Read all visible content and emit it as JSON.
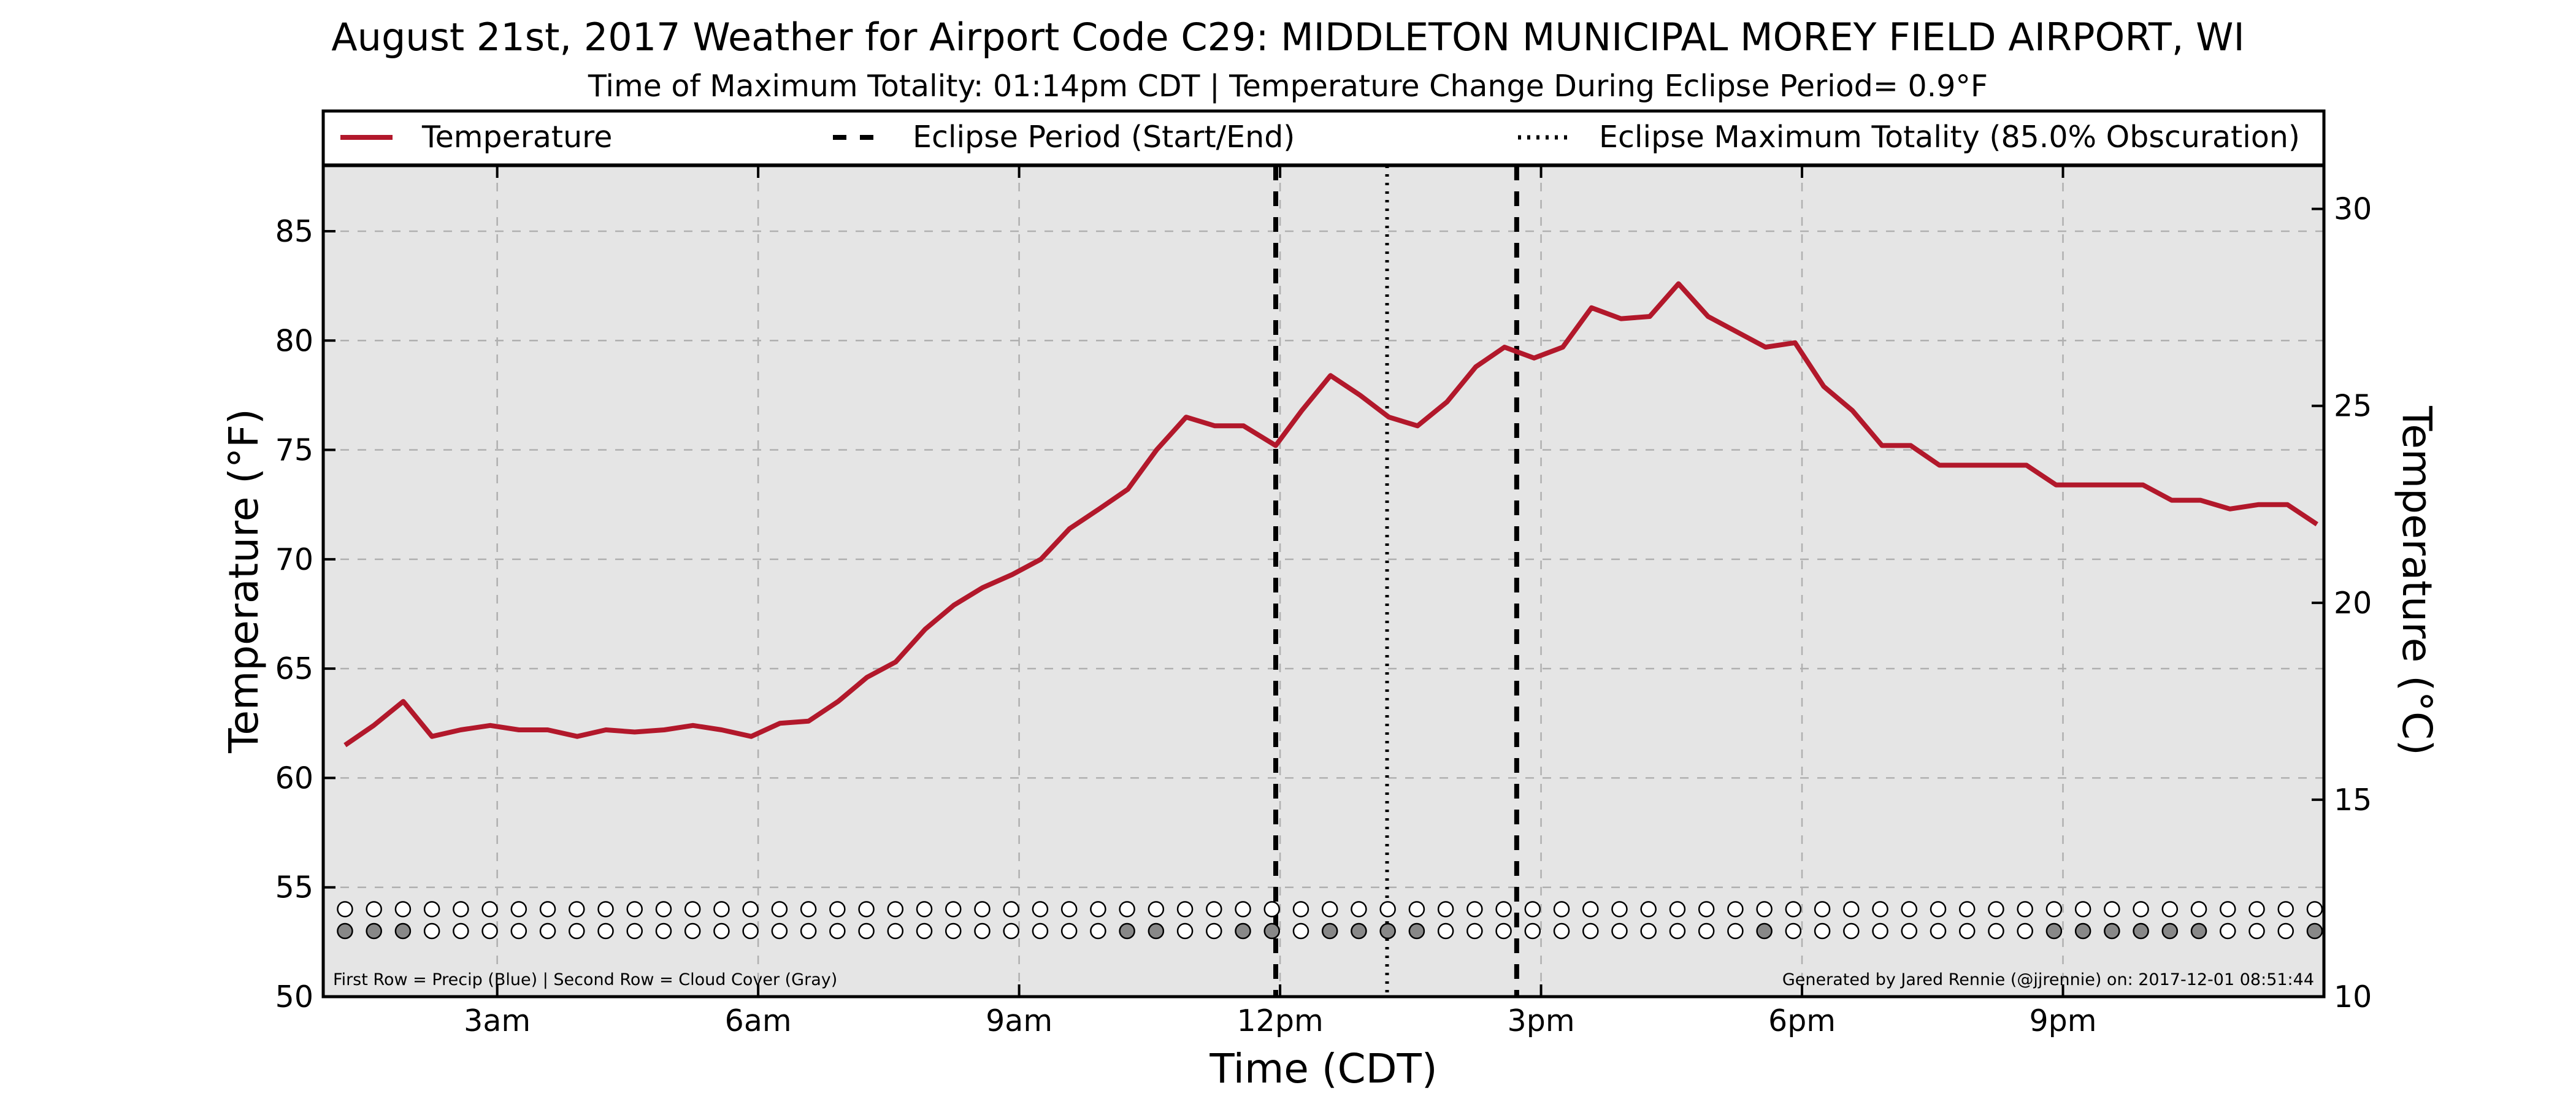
{
  "chart_data": {
    "type": "line",
    "title": "August 21st, 2017 Weather for Airport Code C29: MIDDLETON MUNICIPAL MOREY FIELD AIRPORT, WI",
    "subtitle": "Time of Maximum Totality: 01:14pm CDT | Temperature Change During Eclipse Period= 0.9°F",
    "xlabel": "Time (CDT)",
    "ylabel": "Temperature (°F)",
    "y2label": "Temperature (°C)",
    "x_unit": "hours after midnight (CDT)",
    "xlim": [
      1.0,
      24.0
    ],
    "ylim": [
      50,
      88
    ],
    "y2lim": [
      10,
      31.1
    ],
    "x_ticks": [
      3,
      6,
      9,
      12,
      15,
      18,
      21
    ],
    "x_tick_labels": [
      "3am",
      "6am",
      "9am",
      "12pm",
      "3pm",
      "6pm",
      "9pm"
    ],
    "y_ticks": [
      50,
      55,
      60,
      65,
      70,
      75,
      80,
      85
    ],
    "y2_ticks": [
      10,
      15,
      20,
      25,
      30
    ],
    "grid": true,
    "legend": {
      "placement": "top",
      "entries": [
        "Temperature",
        "Eclipse Period (Start/End)",
        "Eclipse Maximum Totality (85.0% Obscuration)"
      ]
    },
    "series": [
      {
        "name": "Temperature",
        "color": "#b2182b",
        "x": [
          1.25,
          1.58,
          1.92,
          2.25,
          2.58,
          2.92,
          3.25,
          3.58,
          3.92,
          4.25,
          4.58,
          4.92,
          5.25,
          5.58,
          5.92,
          6.25,
          6.58,
          6.92,
          7.25,
          7.58,
          7.92,
          8.25,
          8.58,
          8.92,
          9.25,
          9.58,
          9.92,
          10.25,
          10.58,
          10.92,
          11.25,
          11.58,
          11.95,
          12.25,
          12.58,
          12.92,
          13.25,
          13.58,
          13.92,
          14.25,
          14.58,
          14.92,
          15.25,
          15.58,
          15.92,
          16.25,
          16.58,
          16.92,
          17.25,
          17.58,
          17.92,
          18.25,
          18.58,
          18.92,
          19.25,
          19.58,
          19.92,
          20.25,
          20.58,
          20.92,
          21.25,
          21.58,
          21.92,
          22.25,
          22.58,
          22.92,
          23.25,
          23.58,
          23.92
        ],
        "values": [
          61.5,
          62.4,
          63.5,
          61.9,
          62.2,
          62.4,
          62.2,
          62.2,
          61.9,
          62.2,
          62.1,
          62.2,
          62.4,
          62.2,
          61.9,
          62.5,
          62.6,
          63.5,
          64.6,
          65.3,
          66.8,
          67.9,
          68.7,
          69.3,
          70.0,
          71.4,
          72.3,
          73.2,
          75.0,
          76.5,
          76.1,
          76.1,
          75.2,
          76.8,
          78.4,
          77.5,
          76.5,
          76.1,
          77.2,
          78.8,
          79.7,
          79.2,
          79.7,
          81.5,
          81.0,
          81.1,
          82.6,
          81.1,
          80.4,
          79.7,
          79.9,
          77.9,
          76.8,
          75.2,
          75.2,
          74.3,
          74.3,
          74.3,
          74.3,
          73.4,
          73.4,
          73.4,
          73.4,
          72.7,
          72.7,
          72.3,
          72.5,
          72.5,
          71.6
        ]
      }
    ],
    "eclipse_period": {
      "start": 11.95,
      "end": 14.72,
      "color": "#000000",
      "style": "dashed"
    },
    "max_totality": {
      "time": 13.23,
      "color": "#000000",
      "style": "dotted"
    },
    "indicator_rows": {
      "x_start": 1.25,
      "x_step": 0.333,
      "count": 69,
      "precip_y": 54.0,
      "cloud_y": 53.0,
      "precip_filled_indices": [],
      "cloud_filled_indices": [
        0,
        1,
        2,
        27,
        28,
        31,
        32,
        34,
        35,
        36,
        37,
        49,
        59,
        60,
        61,
        62,
        63,
        64,
        68
      ],
      "precip_color": "#1f77b4",
      "cloud_color": "#888888"
    },
    "footnote_left": "First Row = Precip (Blue) | Second Row = Cloud Cover (Gray)",
    "footnote_right": "Generated by Jared Rennie (@jjrennie) on: 2017-12-01 08:51:44",
    "colors": {
      "background": "#e5e5e5",
      "grid": "#b0b0b0"
    }
  }
}
